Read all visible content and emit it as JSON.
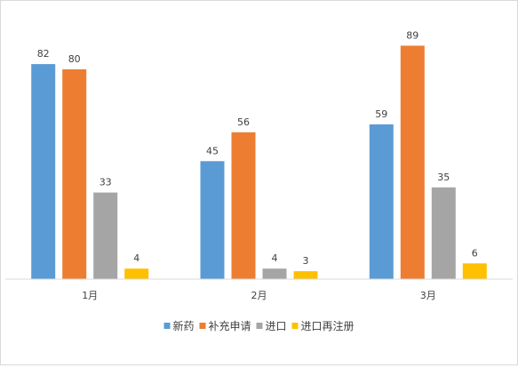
{
  "chart_data": {
    "type": "bar",
    "title": "",
    "xlabel": "",
    "ylabel": "",
    "categories": [
      "1月",
      "2月",
      "3月"
    ],
    "series": [
      {
        "name": "新药",
        "color": "#5B9BD5",
        "values": [
          82,
          45,
          59
        ]
      },
      {
        "name": "补充申请",
        "color": "#ED7D31",
        "values": [
          80,
          56,
          89
        ]
      },
      {
        "name": "进口",
        "color": "#A5A5A5",
        "values": [
          33,
          4,
          35
        ]
      },
      {
        "name": "进口再注册",
        "color": "#FFC000",
        "values": [
          4,
          3,
          6
        ]
      }
    ],
    "ylim": [
      0,
      100
    ],
    "grid": false,
    "legend_position": "bottom",
    "data_labels": true
  }
}
